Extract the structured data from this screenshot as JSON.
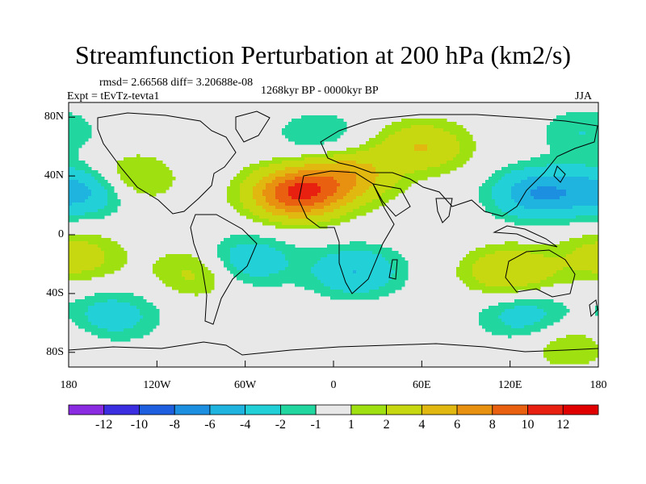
{
  "figure": {
    "title": "Streamfunction Perturbation at 200 hPa (km2/s)",
    "rmsd_line": "rmsd= 2.66568 diff= 3.20688e-08",
    "experiment": "Expt = tEvTz-tevta1",
    "period": "1268kyr BP - 0000kyr BP",
    "season": "JJA"
  },
  "axes": {
    "y_ticks": [
      "80N",
      "40N",
      "0",
      "40S",
      "80S"
    ],
    "x_ticks": [
      "180",
      "120W",
      "60W",
      "0",
      "60E",
      "120E",
      "180"
    ]
  },
  "colorbar": {
    "labels": [
      "-12",
      "-10",
      "-8",
      "-6",
      "-4",
      "-2",
      "-1",
      "1",
      "2",
      "4",
      "6",
      "8",
      "10",
      "12"
    ],
    "colors": [
      "#8a2be2",
      "#3b2ee0",
      "#1e5fe0",
      "#1c8fe0",
      "#1fb3e0",
      "#22d0d8",
      "#22d6a0",
      "#e8e8e8",
      "#9ee010",
      "#c8d810",
      "#e0b810",
      "#e89010",
      "#e86010",
      "#e82010",
      "#e00000"
    ]
  },
  "chart_data": {
    "type": "heatmap",
    "title": "Streamfunction Perturbation at 200 hPa (km2/s)",
    "x_range": [
      -180,
      180
    ],
    "y_range": [
      -90,
      90
    ],
    "levels": [
      -12,
      -10,
      -8,
      -6,
      -4,
      -2,
      -1,
      1,
      2,
      4,
      6,
      8,
      10,
      12
    ],
    "anomaly_centers": [
      {
        "lon": -25,
        "lat": 28,
        "value": 10
      },
      {
        "lon": 10,
        "lat": 40,
        "value": 5
      },
      {
        "lon": 60,
        "lat": 60,
        "value": 4
      },
      {
        "lon": 140,
        "lat": 28,
        "value": -6
      },
      {
        "lon": -170,
        "lat": 30,
        "value": -5
      },
      {
        "lon": -140,
        "lat": 38,
        "value": 3
      },
      {
        "lon": -60,
        "lat": -18,
        "value": -4
      },
      {
        "lon": 15,
        "lat": -25,
        "value": -4
      },
      {
        "lon": 120,
        "lat": -25,
        "value": 4
      },
      {
        "lon": -175,
        "lat": -15,
        "value": 3
      },
      {
        "lon": -90,
        "lat": -25,
        "value": 3
      },
      {
        "lon": -150,
        "lat": -55,
        "value": -3
      },
      {
        "lon": 130,
        "lat": -55,
        "value": -3
      },
      {
        "lon": 160,
        "lat": -75,
        "value": 2
      },
      {
        "lon": -10,
        "lat": 68,
        "value": -2
      },
      {
        "lon": 170,
        "lat": 70,
        "value": -2
      }
    ]
  }
}
